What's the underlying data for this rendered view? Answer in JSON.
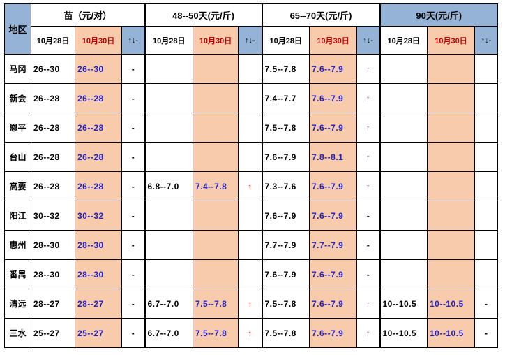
{
  "header": {
    "region_label": "地区",
    "groups": [
      {
        "label": "苗（元/对）"
      },
      {
        "label": "48--50天(元/斤)"
      },
      {
        "label": "65--70天(元/斤)"
      },
      {
        "label": "90天(元/斤)"
      }
    ],
    "date_old": "10月28日",
    "date_new": "10月30日",
    "trend_label": "↑↓-"
  },
  "colors": {
    "header_blue": "#95b3d7",
    "new_col_bg": "#f8cbad",
    "new_value_text": "#1f1fcc",
    "up_arrow": "#e00000",
    "date_new_text": "#c00000"
  },
  "rows": [
    {
      "region": "马冈",
      "cells": [
        [
          "26--30",
          "26--30",
          "-"
        ],
        [
          "",
          "",
          ""
        ],
        [
          "7.5--7.8",
          "7.6--7.9",
          "↑"
        ],
        [
          "",
          "",
          ""
        ]
      ]
    },
    {
      "region": "新会",
      "cells": [
        [
          "26--28",
          "26--28",
          "-"
        ],
        [
          "",
          "",
          ""
        ],
        [
          "7.4--7.7",
          "7.6--7.9",
          "↑"
        ],
        [
          "",
          "",
          ""
        ]
      ]
    },
    {
      "region": "恩平",
      "cells": [
        [
          "26--28",
          "26--28",
          "-"
        ],
        [
          "",
          "",
          ""
        ],
        [
          "7.5--7.8",
          "7.6--7.9",
          "↑"
        ],
        [
          "",
          "",
          ""
        ]
      ]
    },
    {
      "region": "台山",
      "cells": [
        [
          "26--28",
          "26--28",
          "-"
        ],
        [
          "",
          "",
          ""
        ],
        [
          "7.6--7.9",
          "7.8--8.1",
          "↑"
        ],
        [
          "",
          "",
          ""
        ]
      ]
    },
    {
      "region": "高要",
      "cells": [
        [
          "26--28",
          "26--28",
          "-"
        ],
        [
          "6.8--7.0",
          "7.4--7.8",
          "↑"
        ],
        [
          "7.3--7.6",
          "7.6--7.9",
          "↑"
        ],
        [
          "",
          "",
          ""
        ]
      ]
    },
    {
      "region": "阳江",
      "cells": [
        [
          "30--32",
          "30--32",
          "-"
        ],
        [
          "",
          "",
          ""
        ],
        [
          "7.6--7.9",
          "7.6--7.9",
          "-"
        ],
        [
          "",
          "",
          ""
        ]
      ]
    },
    {
      "region": "惠州",
      "cells": [
        [
          "28--30",
          "28--30",
          "-"
        ],
        [
          "",
          "",
          ""
        ],
        [
          "7.7--7.9",
          "7.7--7.9",
          "-"
        ],
        [
          "",
          "",
          ""
        ]
      ]
    },
    {
      "region": "番禺",
      "cells": [
        [
          "28--30",
          "28--30",
          "-"
        ],
        [
          "",
          "",
          ""
        ],
        [
          "7.6--7.9",
          "7.6--7.9",
          "-"
        ],
        [
          "",
          "",
          ""
        ]
      ]
    },
    {
      "region": "清远",
      "cells": [
        [
          "28--27",
          "28--27",
          "-"
        ],
        [
          "6.7--7.0",
          "7.5--7.8",
          "↑"
        ],
        [
          "7.5--7.8",
          "7.6--7.9",
          "↑"
        ],
        [
          "10--10.5",
          "10--10.5",
          "-"
        ]
      ]
    },
    {
      "region": "三水",
      "cells": [
        [
          "25--27",
          "25--27",
          "-"
        ],
        [
          "6.7--7.0",
          "7.5--7.8",
          "↑"
        ],
        [
          "7.5--7.8",
          "7.6--7.9",
          "↑"
        ],
        [
          "10--10.5",
          "10--10.5",
          "-"
        ]
      ]
    }
  ]
}
